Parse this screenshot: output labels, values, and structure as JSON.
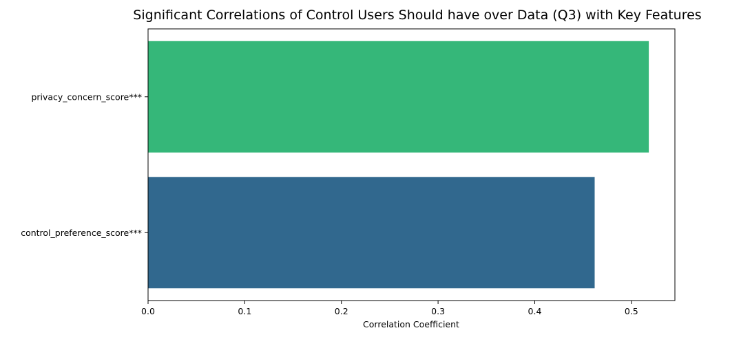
{
  "chart_data": {
    "type": "bar",
    "orientation": "horizontal",
    "title": "Significant Correlations of Control Users Should have over Data (Q3) with Key Features",
    "xlabel": "Correlation Coefficient",
    "ylabel": "",
    "xlim": [
      0,
      0.545
    ],
    "xticks": [
      "0.0",
      "0.1",
      "0.2",
      "0.3",
      "0.4",
      "0.5"
    ],
    "categories": [
      "privacy_concern_score***",
      "control_preference_score***"
    ],
    "values": [
      0.518,
      0.462
    ],
    "colors": [
      "#35b779",
      "#31688e"
    ],
    "grid": false,
    "legend": "none"
  }
}
